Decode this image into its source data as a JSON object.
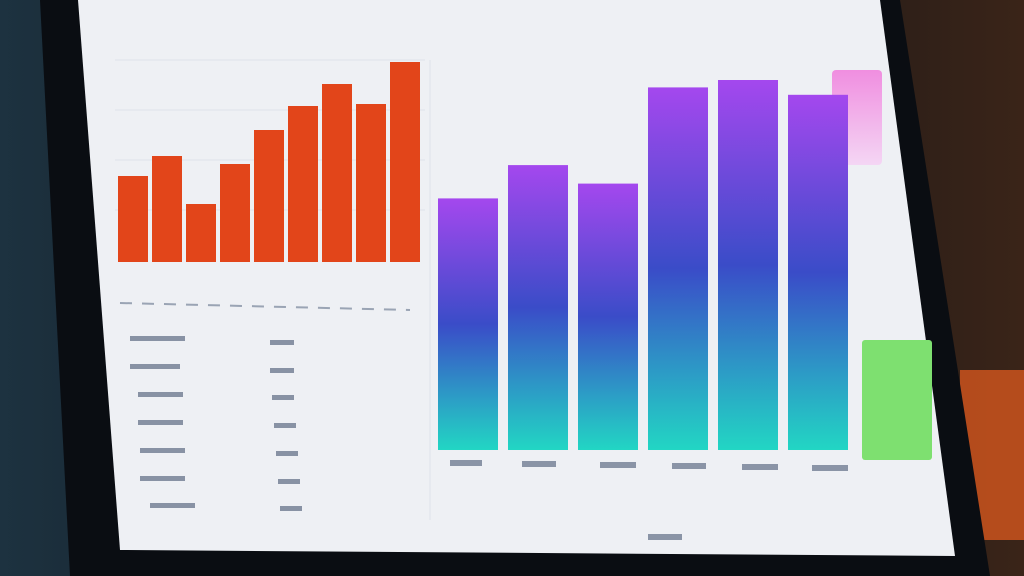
{
  "chart_data": [
    {
      "type": "bar",
      "values": [
        43,
        53,
        29,
        49,
        66,
        78,
        89,
        79,
        100
      ],
      "color": "#e2451a"
    },
    {
      "type": "bar",
      "values": [
        68,
        77,
        72,
        98,
        100,
        96
      ],
      "color": "#a448ee",
      "gradient_end": "#22d6c4"
    }
  ]
}
